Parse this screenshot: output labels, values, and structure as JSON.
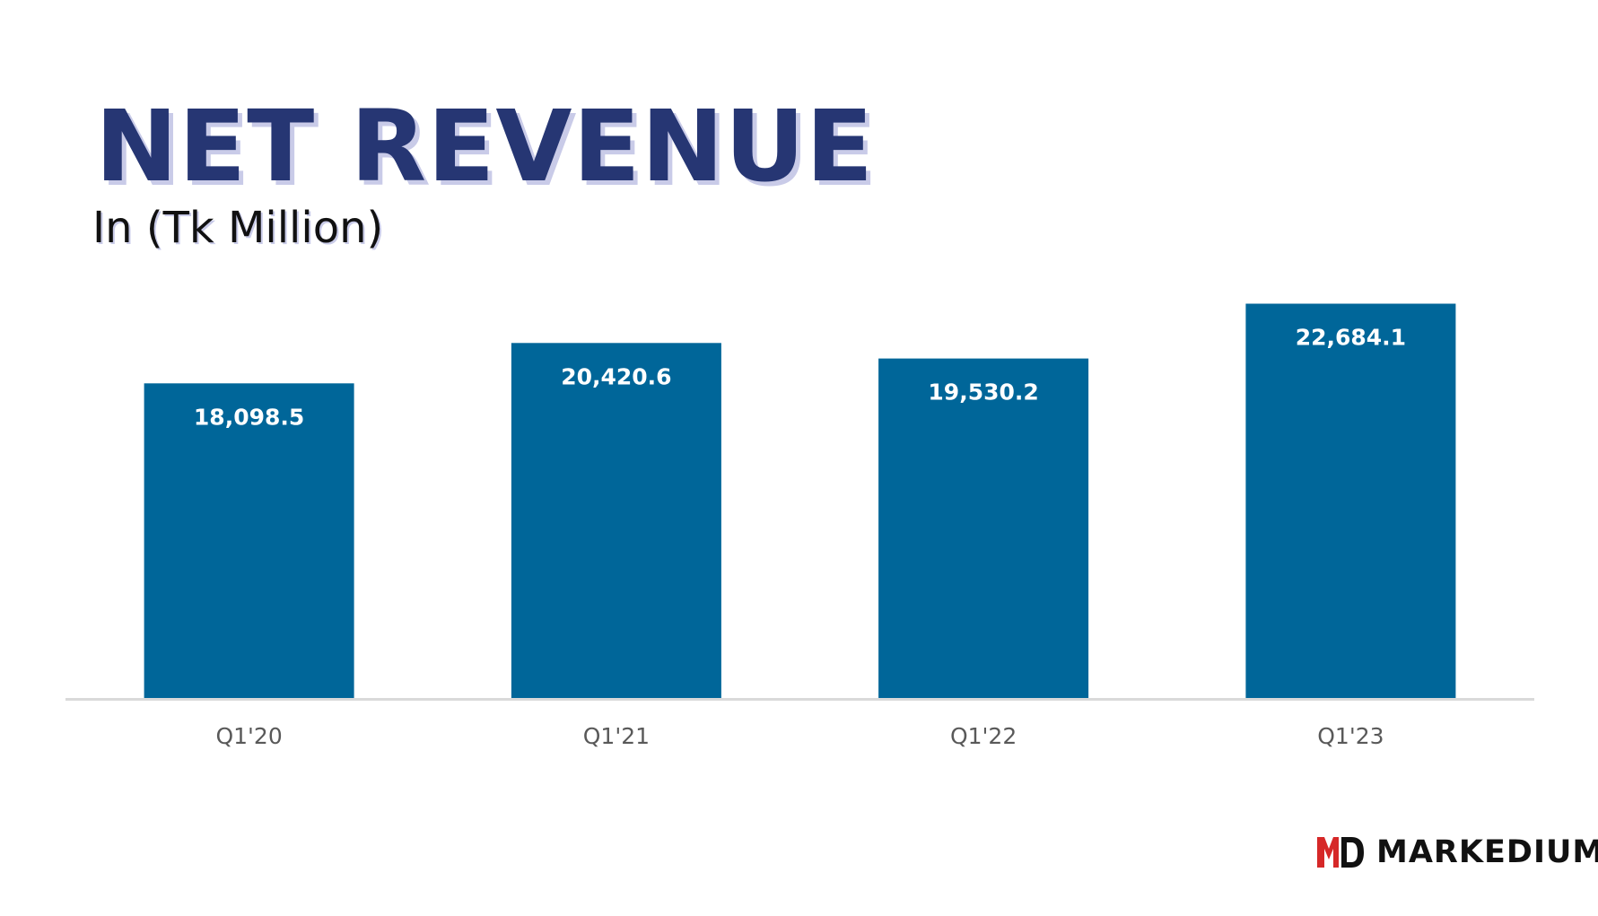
{
  "colors": {
    "title": "#263673",
    "title_shadow": "#c9cbe8",
    "bar": "#006699",
    "bar_label": "#ffffff",
    "tick_label": "#595959",
    "axis": "#d9d9d9",
    "brand_accent": "#d62828",
    "brand_text": "#111111"
  },
  "header": {
    "title": "NET REVENUE",
    "subtitle": "In (Tk Million)"
  },
  "brand": {
    "name": "MARKEDIUM",
    "logo_icon": "md-monogram-icon"
  },
  "chart_data": {
    "type": "bar",
    "categories": [
      "Q1'20",
      "Q1'21",
      "Q1'22",
      "Q1'23"
    ],
    "values": [
      18098.5,
      20420.6,
      19530.2,
      22684.1
    ],
    "value_labels": [
      "18,098.5",
      "20,420.6",
      "19,530.2",
      "22,684.1"
    ],
    "ylim": [
      0,
      24000
    ],
    "grid": false,
    "legend": "none",
    "data_labels": "inside-top"
  }
}
